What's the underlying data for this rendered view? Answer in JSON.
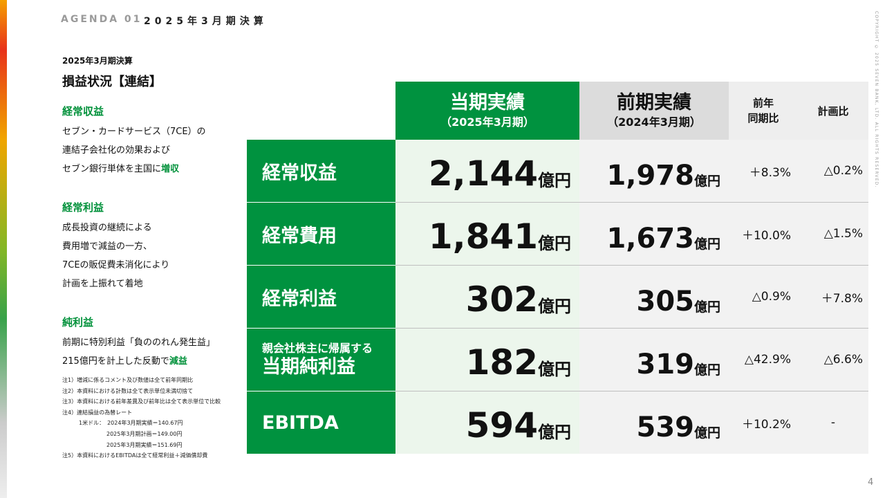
{
  "header": {
    "agenda": "AGENDA 01",
    "title": "2025年3月期決算",
    "copyright": "COPYRIGHT © 2025  SEVEN BANK, LTD. ALL RIGHTS RESERVED.",
    "page_number": "4"
  },
  "left": {
    "subheading": "2025年3月期決算",
    "title": "損益状況【連結】",
    "sections": [
      {
        "heading": "経常収益",
        "lines": [
          "セブン・カードサービス（7CE）の",
          "連結子会社化の効果および"
        ],
        "last_prefix": "セブン銀行単体を主国に",
        "last_highlight": "増収"
      },
      {
        "heading": "経常利益",
        "lines": [
          "成長投資の継続による",
          "費用増で減益の一方、",
          "7CEの販促費未消化により",
          "計画を上振れて着地"
        ]
      },
      {
        "heading": "純利益",
        "lines": [
          "前期に特別利益「負ののれん発生益」"
        ],
        "last_prefix": "215億円を計上した反動で",
        "last_highlight": "減益"
      }
    ],
    "footnotes": [
      "注1）増減に係るコメント及び数値は全て前年同期比",
      "注2）本資料における計数は全て表示単位未満切捨て",
      "注3）本資料における前年差異及び前年比は全て表示単位で比較",
      "注4）連結損益の為替レート",
      "　　　1米ドル：　2024年3月期実績＝140.67円",
      "　　　　　　　　2025年3月期計画＝149.00円",
      "　　　　　　　　2025年3月期実績＝151.69円",
      "注5）本資料におけるEBITDAは全て経常利益＋減価償却費"
    ]
  },
  "table": {
    "headers": {
      "current_main": "当期実績",
      "current_sub": "（2025年3月期）",
      "prev_main": "前期実績",
      "prev_sub": "（2024年3月期）",
      "yoy_line1": "前年",
      "yoy_line2": "同期比",
      "plan": "計画比"
    },
    "unit": "億円",
    "rows": [
      {
        "label": "経常収益",
        "current": "2,144",
        "prev": "1,978",
        "yoy": "＋8.3%",
        "plan": "△0.2%"
      },
      {
        "label": "経常費用",
        "current": "1,841",
        "prev": "1,673",
        "yoy": "＋10.0%",
        "plan": "△1.5%"
      },
      {
        "label": "経常利益",
        "current": "302",
        "prev": "305",
        "yoy": "△0.9%",
        "plan": "＋7.8%"
      },
      {
        "label_small": "親会社株主に帰属する",
        "label": "当期純利益",
        "current": "182",
        "prev": "319",
        "yoy": "△42.9%",
        "plan": "△6.6%"
      },
      {
        "label": "EBITDA",
        "current": "594",
        "prev": "539",
        "yoy": "＋10.2%",
        "plan": "-"
      }
    ]
  },
  "colors": {
    "brand_green": "#00923f",
    "highlight_green": "#00913a"
  }
}
